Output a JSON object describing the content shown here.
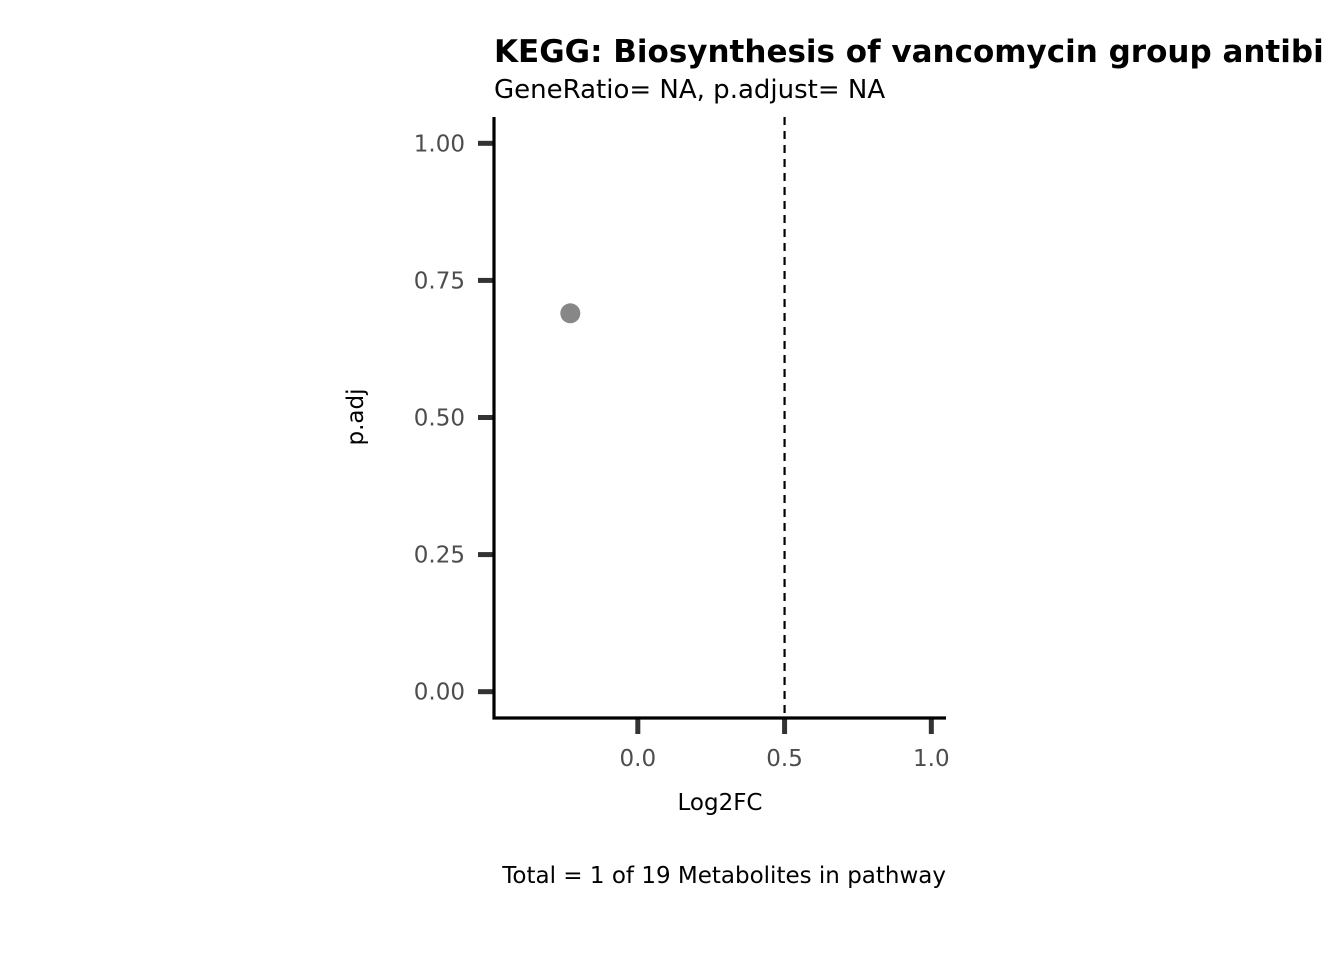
{
  "chart_data": {
    "type": "scatter",
    "title": "KEGG: Biosynthesis of vancomycin group antibi",
    "subtitle": "GeneRatio= NA, p.adjust= NA",
    "xlabel": "Log2FC",
    "ylabel": "p.adj",
    "caption": "Total = 1 of 19 Metabolites in pathway",
    "xlim": [
      -0.49,
      1.05
    ],
    "ylim": [
      -0.048,
      1.048
    ],
    "x_ticks": [
      0.0,
      0.5,
      1.0
    ],
    "x_tick_labels": [
      "0.0",
      "0.5",
      "1.0"
    ],
    "y_ticks": [
      0.0,
      0.25,
      0.5,
      0.75,
      1.0
    ],
    "y_tick_labels": [
      "0.00",
      "0.25",
      "0.50",
      "0.75",
      "1.00"
    ],
    "vline": {
      "x": 0.5,
      "style": "dashed",
      "color": "#000000"
    },
    "points": [
      {
        "x": -0.23,
        "y": 0.69,
        "color": "#878787"
      }
    ],
    "grid": false
  }
}
